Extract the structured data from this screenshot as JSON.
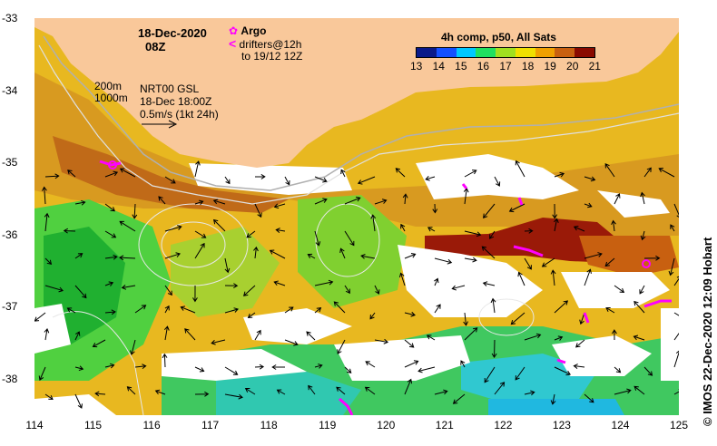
{
  "header": {
    "date": "18-Dec-2020",
    "time": "08Z"
  },
  "legend": {
    "argo_label": "Argo",
    "drifters_line1": "drifters@12h",
    "drifters_line2": "to 19/12 12Z",
    "contour_200": "200m",
    "contour_1000": "1000m",
    "current_line1": "NRT00 GSL",
    "current_line2": "18-Dec 18:00Z",
    "current_line3": "0.5m/s (1kt 24h)"
  },
  "colorbar": {
    "title": "4h comp, p50, All Sats",
    "ticks": [
      "13",
      "14",
      "15",
      "16",
      "17",
      "18",
      "19",
      "20",
      "21"
    ],
    "colors": [
      "#0a1a8a",
      "#1450ff",
      "#00c8ff",
      "#20e060",
      "#a0e020",
      "#f0e000",
      "#f0a000",
      "#c86010",
      "#8a0a00"
    ]
  },
  "axes": {
    "x_ticks": [
      "114",
      "115",
      "116",
      "117",
      "118",
      "119",
      "120",
      "121",
      "122",
      "123",
      "124",
      "125"
    ],
    "y_ticks": [
      "-33",
      "-34",
      "-35",
      "-36",
      "-37",
      "-38"
    ]
  },
  "credit": "© IMOS 22-Dec-2020 12:09 Hobart",
  "colors": {
    "land": "#f9c89a",
    "cloud": "#ffffff",
    "argo": "#ff00ff"
  }
}
